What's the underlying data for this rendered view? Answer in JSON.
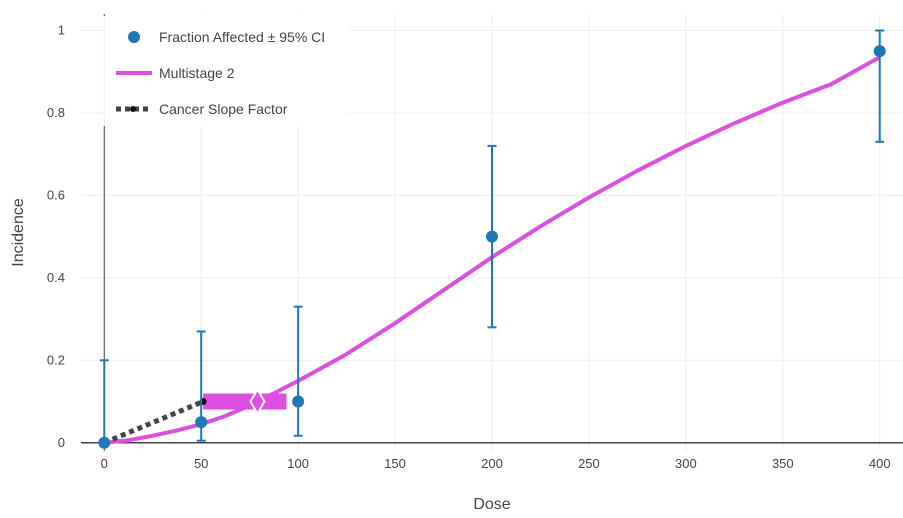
{
  "chart_data": {
    "type": "scatter",
    "xlabel": "Dose",
    "ylabel": "Incidence",
    "xlim": [
      -12,
      412
    ],
    "ylim": [
      -0.02,
      1.04
    ],
    "x_ticks": [
      0,
      50,
      100,
      150,
      200,
      250,
      300,
      350,
      400
    ],
    "y_ticks": [
      0,
      0.2,
      0.4,
      0.6,
      0.8,
      1
    ],
    "x_tick_labels": [
      "0",
      "50",
      "100",
      "150",
      "200",
      "250",
      "300",
      "350",
      "400"
    ],
    "y_tick_labels": [
      "0",
      "0.2",
      "0.4",
      "0.6",
      "0.8",
      "1"
    ],
    "grid": true,
    "legend_position": "top-left",
    "series": [
      {
        "name": "Fraction Affected ± 95% CI",
        "kind": "scatter-errorbar",
        "color": "#1f77b4",
        "points": [
          {
            "x": 0,
            "y": 0,
            "lower": 0,
            "upper": 0.2
          },
          {
            "x": 50,
            "y": 0.05,
            "lower": 0.005,
            "upper": 0.27
          },
          {
            "x": 100,
            "y": 0.1,
            "lower": 0.017,
            "upper": 0.33
          },
          {
            "x": 200,
            "y": 0.5,
            "lower": 0.28,
            "upper": 0.72
          },
          {
            "x": 400,
            "y": 0.95,
            "lower": 0.73,
            "upper": 1.0
          }
        ]
      },
      {
        "name": "Multistage 2",
        "kind": "line",
        "color": "#dd4fe0",
        "x": [
          0,
          12.5,
          25,
          37.5,
          50,
          62.5,
          75,
          100,
          125,
          150,
          175,
          200,
          225,
          250,
          275,
          300,
          325,
          350,
          375,
          400
        ],
        "y": [
          0,
          0.006,
          0.017,
          0.03,
          0.045,
          0.065,
          0.09,
          0.15,
          0.215,
          0.29,
          0.37,
          0.45,
          0.525,
          0.595,
          0.66,
          0.72,
          0.775,
          0.825,
          0.87,
          0.935
        ]
      },
      {
        "name": "Cancer Slope Factor",
        "kind": "dotted-line",
        "color": "#444444",
        "x": [
          0,
          51
        ],
        "y": [
          0,
          0.1
        ]
      }
    ],
    "bmd_interval": {
      "color": "#dd4fe0",
      "lower": 51,
      "upper": 94,
      "estimate": 79,
      "y": 0.1
    }
  }
}
